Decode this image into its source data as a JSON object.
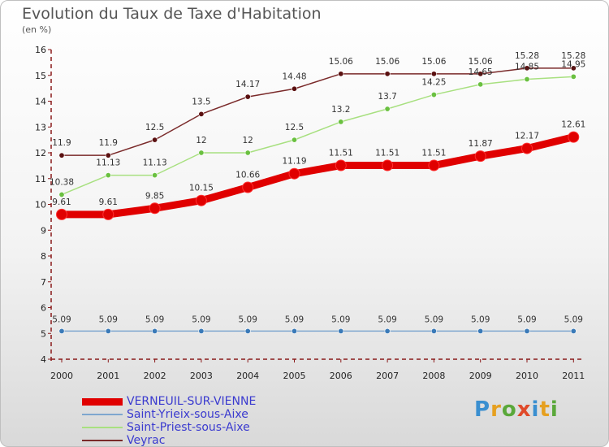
{
  "title": "Evolution du Taux de Taxe d'Habitation",
  "subtitle": "(en %)",
  "logo": "Proxiti",
  "chart_data": {
    "type": "line",
    "title": "Evolution du Taux de Taxe d'Habitation",
    "ylabel": "(en %)",
    "xlabel": "",
    "ylim": [
      4,
      16
    ],
    "yticks": [
      4,
      5,
      6,
      7,
      8,
      9,
      10,
      11,
      12,
      13,
      14,
      15,
      16
    ],
    "grid": false,
    "legend": "bottom-left",
    "x": [
      "2000",
      "2001",
      "2002",
      "2003",
      "2004",
      "2005",
      "2006",
      "2007",
      "2008",
      "2009",
      "2010",
      "2011"
    ],
    "series": [
      {
        "name": "VERNEUIL-SUR-VIENNE",
        "color": "#e00000",
        "width": 9,
        "values": [
          9.61,
          9.61,
          9.85,
          10.15,
          10.66,
          11.19,
          11.51,
          11.51,
          11.51,
          11.87,
          12.17,
          12.61
        ],
        "labels": [
          "9.61",
          "9.61",
          "9.85",
          "10.15",
          "10.66",
          "11.19",
          "11.51",
          "11.51",
          "11.51",
          "11.87",
          "12.17",
          "12.61"
        ]
      },
      {
        "name": "Saint-Yrieix-sous-Aixe",
        "color": "#7fa7cf",
        "width": 1.5,
        "values": [
          5.09,
          5.09,
          5.09,
          5.09,
          5.09,
          5.09,
          5.09,
          5.09,
          5.09,
          5.09,
          5.09,
          5.09
        ],
        "labels": [
          "5.09",
          "5.09",
          "5.09",
          "5.09",
          "5.09",
          "5.09",
          "5.09",
          "5.09",
          "5.09",
          "5.09",
          "5.09",
          "5.09"
        ]
      },
      {
        "name": "Saint-Priest-sous-Aixe",
        "color": "#a8e080",
        "width": 1.5,
        "values": [
          10.38,
          11.13,
          11.13,
          12,
          12,
          12.5,
          13.2,
          13.7,
          14.25,
          14.65,
          14.85,
          14.95
        ],
        "labels": [
          "10.38",
          "11.13",
          "11.13",
          "12",
          "12",
          "12.5",
          "13.2",
          "13.7",
          "14.25",
          "14.65",
          "14.85",
          "14.95"
        ]
      },
      {
        "name": "Veyrac",
        "color": "#7a2a2a",
        "width": 1.5,
        "values": [
          11.9,
          11.9,
          12.5,
          13.5,
          14.17,
          14.48,
          15.06,
          15.06,
          15.06,
          15.06,
          15.28,
          15.28
        ],
        "labels": [
          "11.9",
          "11.9",
          "12.5",
          "13.5",
          "14.17",
          "14.48",
          "15.06",
          "15.06",
          "15.06",
          "15.06",
          "15.28",
          "15.28"
        ]
      }
    ]
  }
}
